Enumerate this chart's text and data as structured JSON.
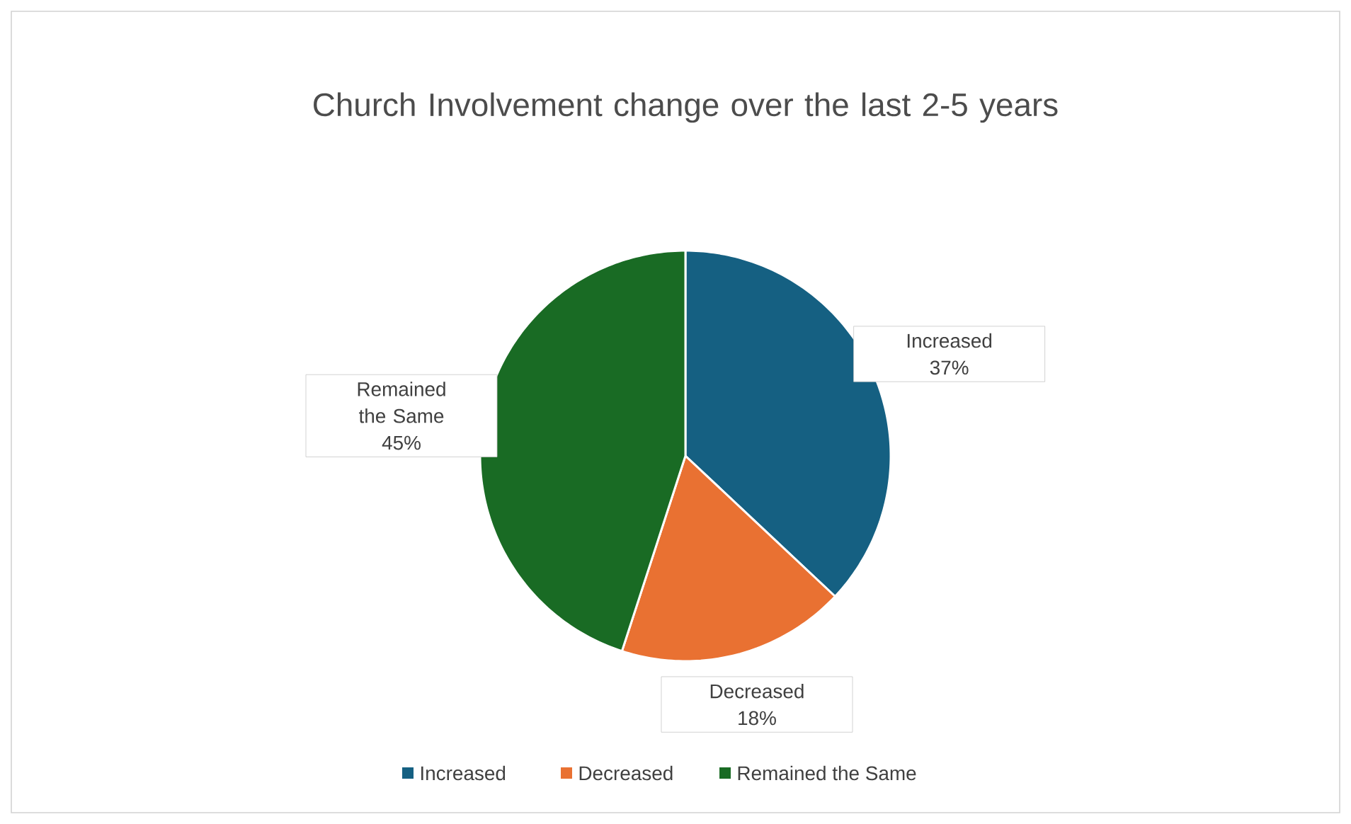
{
  "chart_data": {
    "type": "pie",
    "title": "Church Involvement change over the last 2-5 years",
    "categories": [
      "Increased",
      "Decreased",
      "Remained the Same"
    ],
    "values": [
      37,
      18,
      45
    ],
    "colors": [
      "#156082",
      "#e97132",
      "#196b24"
    ],
    "value_labels": [
      "37%",
      "18%",
      "45%"
    ],
    "legend": "bottom"
  }
}
